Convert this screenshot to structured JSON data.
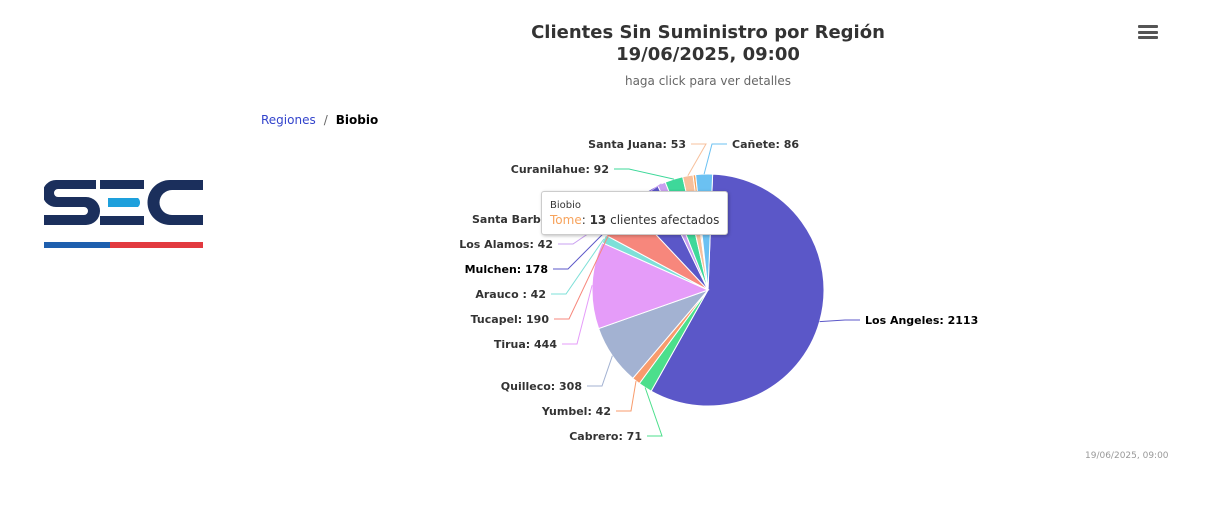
{
  "header": {
    "title_line1": "Clientes Sin Suministro por Región",
    "title_line2": "19/06/2025, 09:00",
    "subtitle": "haga click para ver detalles",
    "menu_icon": "hamburger-icon"
  },
  "breadcrumb": {
    "parent": "Regiones",
    "separator": "/",
    "current": "Biobio"
  },
  "logo": {
    "text": "SEC",
    "colors": {
      "navy": "#1b2f5c",
      "cyan": "#1ea0dc",
      "blue": "#1e5fae",
      "red": "#e23a3f"
    }
  },
  "tooltip": {
    "series": "Biobio",
    "point": "Tome",
    "value": "13",
    "suffix": "clientes afectados",
    "point_color": "#f7a35c"
  },
  "credit": "19/06/2025, 09:00",
  "chart_data": {
    "type": "pie",
    "title": "Clientes Sin Suministro por Región",
    "subtitle": "haga click para ver detalles",
    "series_name": "Biobio",
    "hidden_label": "Santa Barbar",
    "points": [
      {
        "name": "Los Angeles",
        "value": 2113,
        "label": "Los Angeles: 2113",
        "color": "#5b57c8"
      },
      {
        "name": "Cabrero",
        "value": 71,
        "label": "Cabrero: 71",
        "color": "#4cdf8c"
      },
      {
        "name": "Yumbel",
        "value": 42,
        "label": "Yumbel: 42",
        "color": "#f89b6c"
      },
      {
        "name": "Quilleco",
        "value": 308,
        "label": "Quilleco: 308",
        "color": "#a3b2d2"
      },
      {
        "name": "Tirua",
        "value": 444,
        "label": "Tirua: 444",
        "color": "#e59cf9"
      },
      {
        "name": "Arauco",
        "value": 42,
        "label": "Arauco : 42",
        "color": "#7ee0d8"
      },
      {
        "name": "Tucapel",
        "value": 190,
        "label": "Tucapel: 190",
        "color": "#f7877c"
      },
      {
        "name": "Mulchen",
        "value": 178,
        "label": "Mulchen: 178",
        "color": "#5b57c8"
      },
      {
        "name": "Los Alamos",
        "value": 42,
        "label": "Los Alamos: 42",
        "color": "#c9a0f0"
      },
      {
        "name": "Curanilahue",
        "value": 92,
        "label": "Curanilahue: 92",
        "color": "#3ed89a"
      },
      {
        "name": "Santa Juana",
        "value": 53,
        "label": "Santa Juana: 53",
        "color": "#f7c09c"
      },
      {
        "name": "Tome",
        "value": 13,
        "label": "",
        "color": "#f7a35c"
      },
      {
        "name": "Cañete",
        "value": 86,
        "label": "Cañete: 86",
        "color": "#6bc1f2"
      }
    ]
  }
}
